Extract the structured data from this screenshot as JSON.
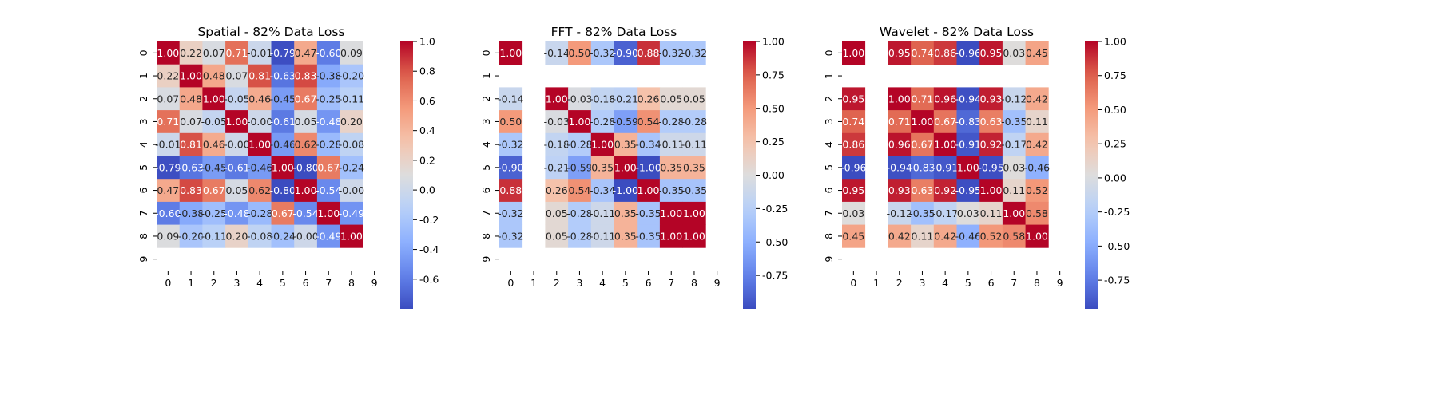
{
  "chart_data": [
    {
      "type": "heatmap",
      "title": "Spatial - 82% Data Loss",
      "row_labels": [
        "0",
        "1",
        "2",
        "3",
        "4",
        "5",
        "6",
        "7",
        "8",
        "9"
      ],
      "col_labels": [
        "0",
        "1",
        "2",
        "3",
        "4",
        "5",
        "6",
        "7",
        "8",
        "9"
      ],
      "cell_labels": [
        [
          "1.00",
          "0.22",
          "0.07",
          "0.71",
          "-0.01",
          "-0.79",
          "0.47",
          "-0.60",
          "0.09",
          null
        ],
        [
          "0.22",
          "1.00",
          "0.48",
          "0.07",
          "0.81",
          "-0.63",
          "0.83",
          "-0.38",
          "-0.20",
          null
        ],
        [
          "0.07",
          "0.48",
          "1.00",
          "-0.05",
          "0.46",
          "-0.45",
          "0.67",
          "-0.25",
          "-0.11",
          null
        ],
        [
          "0.71",
          "0.07",
          "-0.05",
          "1.00",
          "-0.00",
          "-0.61",
          "0.05",
          "-0.48",
          "0.20",
          null
        ],
        [
          "-0.01",
          "0.81",
          "0.46",
          "-0.00",
          "1.00",
          "-0.46",
          "0.62",
          "-0.28",
          "-0.08",
          null
        ],
        [
          "-0.79",
          "-0.63",
          "-0.45",
          "-0.61",
          "-0.46",
          "1.00",
          "-0.80",
          "0.67",
          "-0.24",
          null
        ],
        [
          "0.47",
          "0.83",
          "0.67",
          "0.05",
          "0.62",
          "-0.80",
          "1.00",
          "-0.54",
          "-0.00",
          null
        ],
        [
          "-0.60",
          "-0.38",
          "-0.25",
          "-0.48",
          "-0.28",
          "0.67",
          "-0.54",
          "1.00",
          "-0.49",
          null
        ],
        [
          "0.09",
          "-0.20",
          "-0.11",
          "0.20",
          "-0.08",
          "-0.24",
          "-0.00",
          "-0.49",
          "1.00",
          null
        ],
        [
          null,
          null,
          null,
          null,
          null,
          null,
          null,
          null,
          null,
          null
        ]
      ],
      "vmin": -0.8,
      "vmax": 1.0,
      "colorbar_ticks": [
        "1.0",
        "0.8",
        "0.6",
        "0.4",
        "0.2",
        "0.0",
        "-0.2",
        "-0.4",
        "-0.6"
      ],
      "colorbar_tick_values": [
        1.0,
        0.8,
        0.6,
        0.4,
        0.2,
        0.0,
        -0.2,
        -0.4,
        -0.6
      ],
      "colormap": "coolwarm"
    },
    {
      "type": "heatmap",
      "title": "FFT - 82% Data Loss",
      "row_labels": [
        "0",
        "1",
        "2",
        "3",
        "4",
        "5",
        "6",
        "7",
        "8",
        "9"
      ],
      "col_labels": [
        "0",
        "1",
        "2",
        "3",
        "4",
        "5",
        "6",
        "7",
        "8",
        "9"
      ],
      "cell_labels": [
        [
          "1.00",
          null,
          "-0.14",
          "0.50",
          "-0.32",
          "-0.90",
          "0.88",
          "-0.32",
          "-0.32",
          null
        ],
        [
          null,
          null,
          null,
          null,
          null,
          null,
          null,
          null,
          null,
          null
        ],
        [
          "-0.14",
          null,
          "1.00",
          "-0.03",
          "-0.18",
          "-0.21",
          "0.26",
          "0.05",
          "0.05",
          null
        ],
        [
          "0.50",
          null,
          "-0.03",
          "1.00",
          "-0.28",
          "-0.59",
          "0.54",
          "-0.28",
          "-0.28",
          null
        ],
        [
          "-0.32",
          null,
          "-0.18",
          "-0.28",
          "1.00",
          "0.35",
          "-0.34",
          "-0.11",
          "-0.11",
          null
        ],
        [
          "-0.90",
          null,
          "-0.21",
          "-0.59",
          "0.35",
          "1.00",
          "-1.00",
          "0.35",
          "0.35",
          null
        ],
        [
          "0.88",
          null,
          "0.26",
          "0.54",
          "-0.34",
          "-1.00",
          "1.00",
          "-0.35",
          "-0.35",
          null
        ],
        [
          "-0.32",
          null,
          "0.05",
          "-0.28",
          "-0.11",
          "0.35",
          "-0.35",
          "1.00",
          "1.00",
          null
        ],
        [
          "-0.32",
          null,
          "0.05",
          "-0.28",
          "-0.11",
          "0.35",
          "-0.35",
          "1.00",
          "1.00",
          null
        ],
        [
          null,
          null,
          null,
          null,
          null,
          null,
          null,
          null,
          null,
          null
        ]
      ],
      "vmin": -1.0,
      "vmax": 1.0,
      "colorbar_ticks": [
        "1.00",
        "0.75",
        "0.50",
        "0.25",
        "0.00",
        "-0.25",
        "-0.50",
        "-0.75"
      ],
      "colorbar_tick_values": [
        1.0,
        0.75,
        0.5,
        0.25,
        0.0,
        -0.25,
        -0.5,
        -0.75
      ],
      "colormap": "coolwarm"
    },
    {
      "type": "heatmap",
      "title": "Wavelet - 82% Data Loss",
      "row_labels": [
        "0",
        "1",
        "2",
        "3",
        "4",
        "5",
        "6",
        "7",
        "8",
        "9"
      ],
      "col_labels": [
        "0",
        "1",
        "2",
        "3",
        "4",
        "5",
        "6",
        "7",
        "8",
        "9"
      ],
      "cell_labels": [
        [
          "1.00",
          null,
          "0.95",
          "0.74",
          "0.86",
          "-0.96",
          "0.95",
          "0.03",
          "0.45",
          null
        ],
        [
          null,
          null,
          null,
          null,
          null,
          null,
          null,
          null,
          null,
          null
        ],
        [
          "0.95",
          null,
          "1.00",
          "0.71",
          "0.96",
          "-0.94",
          "0.93",
          "-0.12",
          "0.42",
          null
        ],
        [
          "0.74",
          null,
          "0.71",
          "1.00",
          "0.67",
          "-0.83",
          "0.63",
          "-0.35",
          "0.11",
          null
        ],
        [
          "0.86",
          null,
          "0.96",
          "0.67",
          "1.00",
          "-0.91",
          "0.92",
          "-0.17",
          "0.42",
          null
        ],
        [
          "-0.96",
          null,
          "-0.94",
          "-0.83",
          "-0.91",
          "1.00",
          "-0.95",
          "0.03",
          "-0.46",
          null
        ],
        [
          "0.95",
          null,
          "0.93",
          "0.63",
          "0.92",
          "-0.95",
          "1.00",
          "0.11",
          "0.52",
          null
        ],
        [
          "0.03",
          null,
          "-0.12",
          "-0.35",
          "-0.17",
          "0.03",
          "0.11",
          "1.00",
          "0.58",
          null
        ],
        [
          "0.45",
          null,
          "0.42",
          "0.11",
          "0.42",
          "-0.46",
          "0.52",
          "0.58",
          "1.00",
          null
        ],
        [
          null,
          null,
          null,
          null,
          null,
          null,
          null,
          null,
          null,
          null
        ]
      ],
      "vmin": -0.96,
      "vmax": 1.0,
      "colorbar_ticks": [
        "1.00",
        "0.75",
        "0.50",
        "0.25",
        "0.00",
        "-0.25",
        "-0.50",
        "-0.75"
      ],
      "colorbar_tick_values": [
        1.0,
        0.75,
        0.5,
        0.25,
        0.0,
        -0.25,
        -0.5,
        -0.75
      ],
      "colormap": "coolwarm"
    }
  ]
}
